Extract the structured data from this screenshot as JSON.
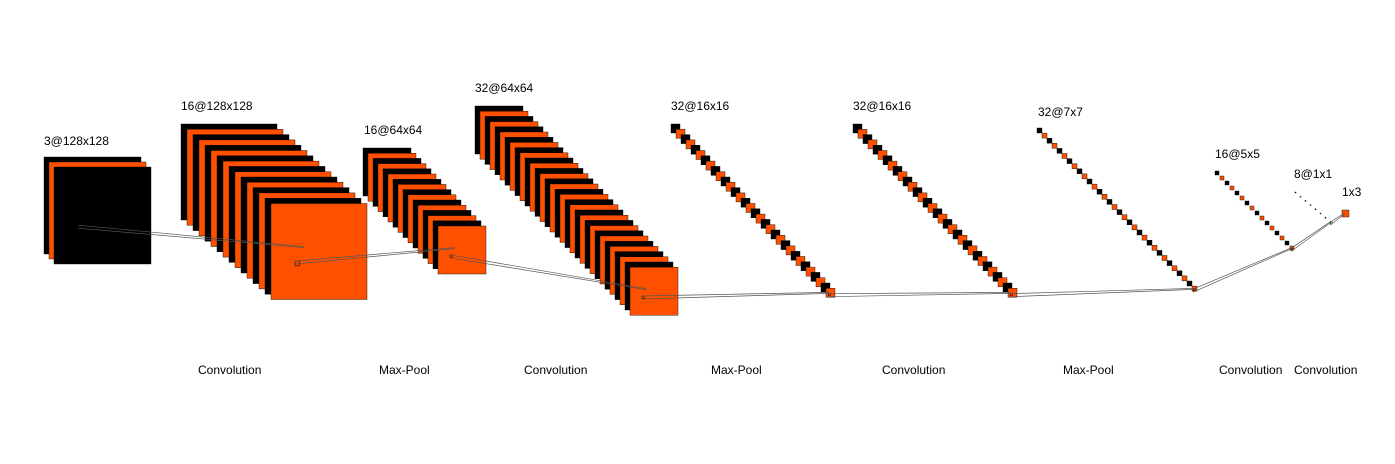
{
  "diagram": {
    "title": "",
    "colors": {
      "feature_map_a": "#000000",
      "feature_map_b": "#ff5000",
      "connector": "#555555",
      "background": "#ffffff"
    },
    "layers": [
      {
        "id": "input",
        "label": "3@128x128"
      },
      {
        "id": "conv1",
        "label": "16@128x128"
      },
      {
        "id": "pool1",
        "label": "16@64x64"
      },
      {
        "id": "conv2",
        "label": "32@64x64"
      },
      {
        "id": "pool2",
        "label": "32@16x16"
      },
      {
        "id": "conv3",
        "label": "32@16x16"
      },
      {
        "id": "pool3",
        "label": "32@7x7"
      },
      {
        "id": "conv4",
        "label": "16@5x5"
      },
      {
        "id": "conv5",
        "label": "8@1x1"
      },
      {
        "id": "output",
        "label": "1x3"
      }
    ],
    "operations": [
      {
        "label": "Convolution"
      },
      {
        "label": "Max-Pool"
      },
      {
        "label": "Convolution"
      },
      {
        "label": "Max-Pool"
      },
      {
        "label": "Convolution"
      },
      {
        "label": "Max-Pool"
      },
      {
        "label": "Convolution"
      },
      {
        "label": "Convolution"
      }
    ]
  }
}
